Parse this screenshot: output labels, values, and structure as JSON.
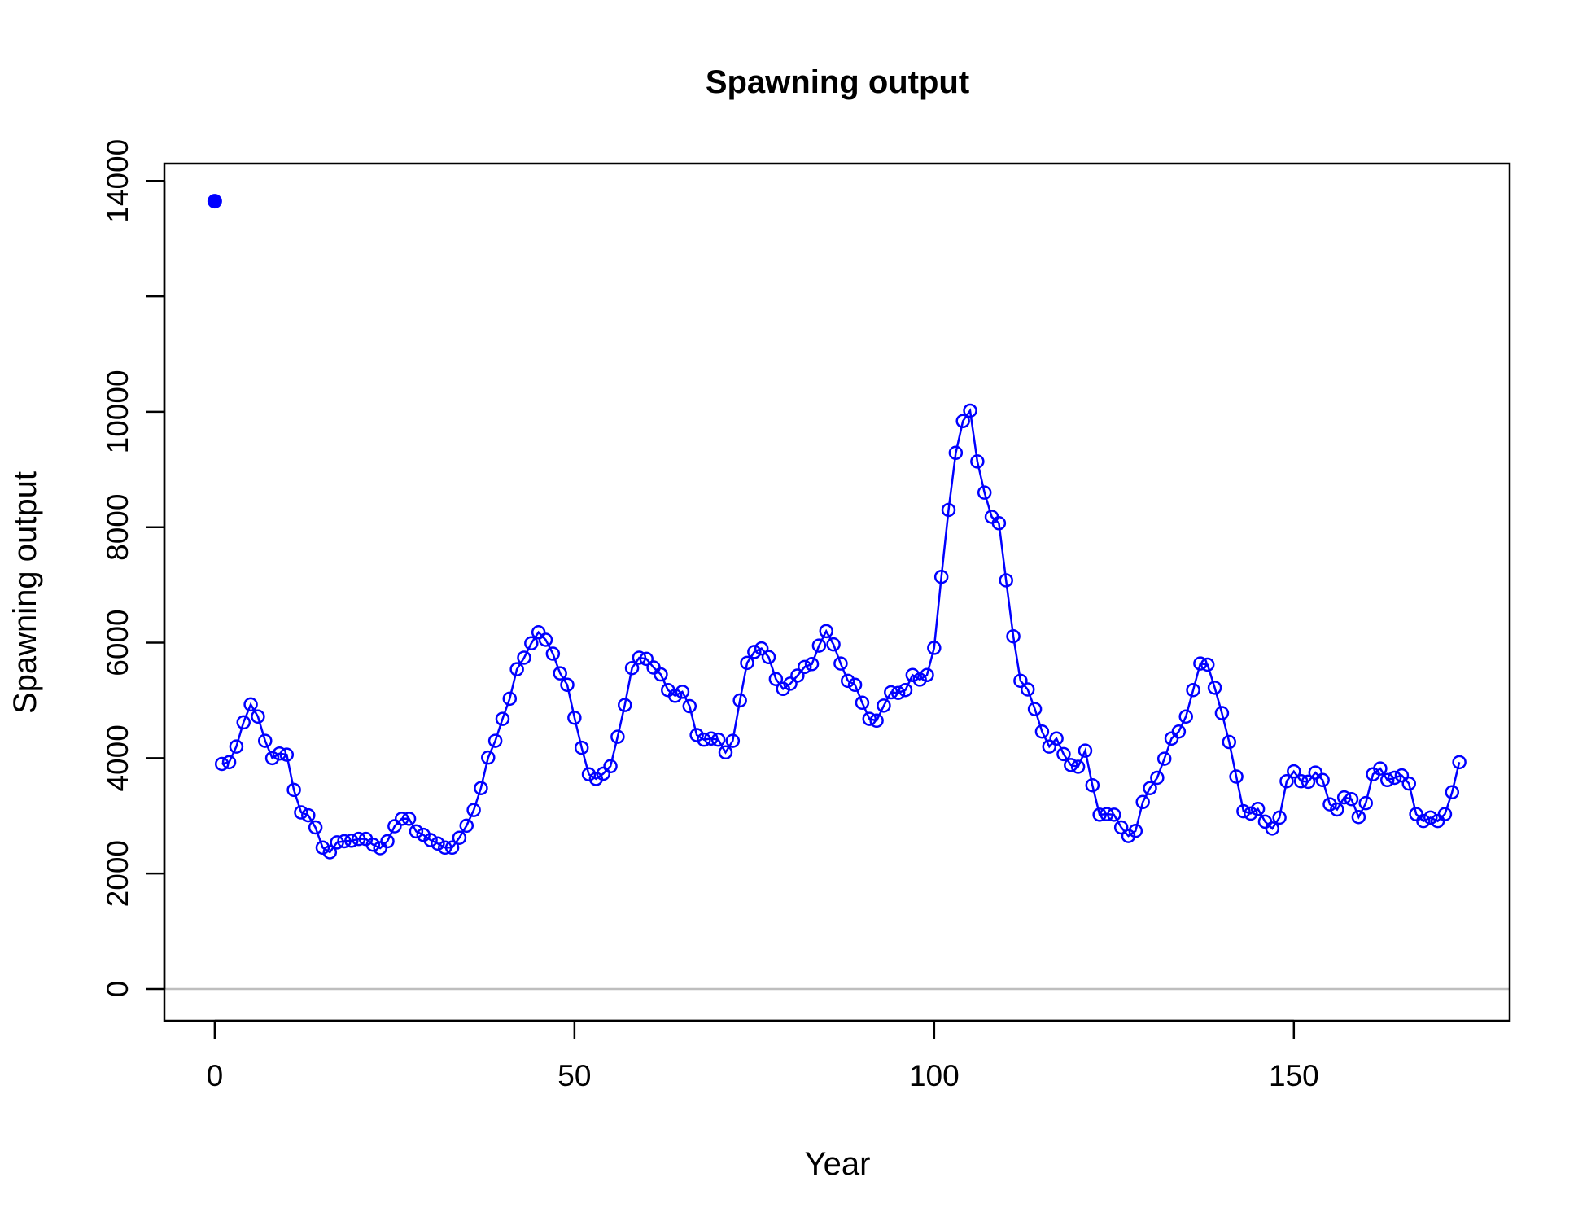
{
  "chart_data": {
    "type": "line",
    "title": "Spawning output",
    "xlabel": "Year",
    "ylabel": "Spawning output",
    "xlim": [
      -7,
      180
    ],
    "ylim": [
      -550,
      14300
    ],
    "xticks": [
      0,
      50,
      100,
      150
    ],
    "yticks": [
      0,
      2000,
      4000,
      6000,
      8000,
      10000,
      12000,
      14000
    ],
    "ytick_labels": [
      "0",
      "2000",
      "4000",
      "6000",
      "8000",
      "10000",
      "",
      "14000"
    ],
    "reference_line": 0,
    "colors": {
      "series": "#0000ff",
      "reference": "#bebebe",
      "axis": "#000000"
    },
    "virgin_point": {
      "x": 0,
      "y": 13650
    },
    "series": [
      {
        "x": [
          1,
          2,
          3,
          4,
          5,
          6,
          7,
          8,
          9,
          10,
          11,
          12,
          13,
          14,
          15,
          16,
          17,
          18,
          19,
          20,
          21,
          22,
          23,
          24,
          25,
          26,
          27,
          28,
          29,
          30,
          31,
          32,
          33,
          34,
          35,
          36,
          37,
          38,
          39,
          40,
          41,
          42,
          43,
          44,
          45,
          46,
          47,
          48,
          49,
          50,
          51,
          52,
          53,
          54,
          55,
          56,
          57,
          58,
          59,
          60,
          61,
          62,
          63,
          64,
          65,
          66,
          67,
          68,
          69,
          70,
          71,
          72,
          73,
          74,
          75,
          76,
          77,
          78,
          79,
          80,
          81,
          82,
          83,
          84,
          85,
          86,
          87,
          88,
          89,
          90,
          91,
          92,
          93,
          94,
          95,
          96,
          97,
          98,
          99,
          100,
          101,
          102,
          103,
          104,
          105,
          106,
          107,
          108,
          109,
          110,
          111,
          112,
          113,
          114,
          115,
          116,
          117,
          118,
          119,
          120,
          121,
          122,
          123,
          124,
          125,
          126,
          127,
          128,
          129,
          130,
          131,
          132,
          133,
          134,
          135,
          136,
          137,
          138,
          139,
          140,
          141,
          142,
          143,
          144,
          145,
          146,
          147,
          148,
          149,
          150,
          151,
          152,
          153,
          154,
          155,
          156,
          157,
          158,
          159,
          160,
          161,
          162,
          163,
          164,
          165,
          166,
          167,
          168,
          169,
          170,
          171,
          172,
          173
        ],
        "y": [
          3900,
          3930,
          4200,
          4620,
          4930,
          4720,
          4300,
          4000,
          4080,
          4060,
          3450,
          3060,
          3010,
          2800,
          2450,
          2370,
          2540,
          2560,
          2570,
          2600,
          2600,
          2500,
          2440,
          2560,
          2820,
          2950,
          2950,
          2730,
          2670,
          2580,
          2520,
          2450,
          2450,
          2620,
          2830,
          3100,
          3480,
          4010,
          4300,
          4680,
          5030,
          5540,
          5740,
          5990,
          6180,
          6050,
          5810,
          5470,
          5270,
          4700,
          4180,
          3720,
          3640,
          3730,
          3860,
          4370,
          4920,
          5560,
          5740,
          5720,
          5570,
          5450,
          5180,
          5080,
          5150,
          4900,
          4400,
          4320,
          4340,
          4320,
          4100,
          4300,
          5000,
          5650,
          5840,
          5900,
          5750,
          5370,
          5200,
          5290,
          5430,
          5580,
          5630,
          5950,
          6200,
          5970,
          5640,
          5340,
          5270,
          4960,
          4680,
          4650,
          4910,
          5140,
          5130,
          5180,
          5440,
          5360,
          5440,
          5910,
          7140,
          8300,
          9290,
          9840,
          10020,
          9140,
          8600,
          8180,
          8070,
          7080,
          6110,
          5340,
          5190,
          4850,
          4460,
          4200,
          4340,
          4070,
          3880,
          3850,
          4130,
          3530,
          3020,
          3030,
          3020,
          2800,
          2650,
          2740,
          3240,
          3480,
          3660,
          3990,
          4340,
          4460,
          4720,
          5180,
          5640,
          5620,
          5220,
          4780,
          4280,
          3680,
          3080,
          3040,
          3120,
          2900,
          2780,
          2970,
          3600,
          3770,
          3600,
          3590,
          3750,
          3620,
          3200,
          3110,
          3320,
          3290,
          2980,
          3220,
          3720,
          3820,
          3620,
          3660,
          3700,
          3560,
          3030,
          2910,
          2970,
          2910,
          3030,
          3410,
          3930
        ]
      }
    ]
  }
}
